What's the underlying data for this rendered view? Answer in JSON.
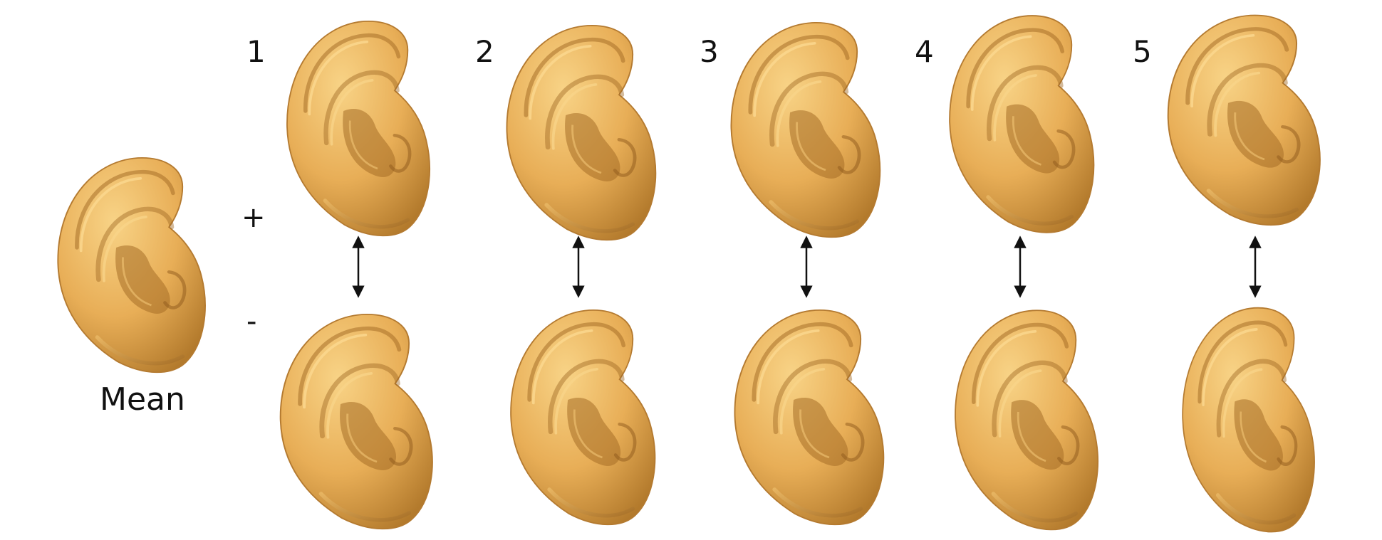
{
  "colors": {
    "skin": "#e7ad55",
    "skin_light": "#f6cd7c",
    "skin_dark": "#a06a23",
    "arrow": "#111111"
  },
  "mean": {
    "label": "Mean"
  },
  "signs": {
    "plus": "+",
    "minus": "-"
  },
  "components": [
    {
      "label": "1"
    },
    {
      "label": "2"
    },
    {
      "label": "3"
    },
    {
      "label": "4"
    },
    {
      "label": "5"
    }
  ]
}
